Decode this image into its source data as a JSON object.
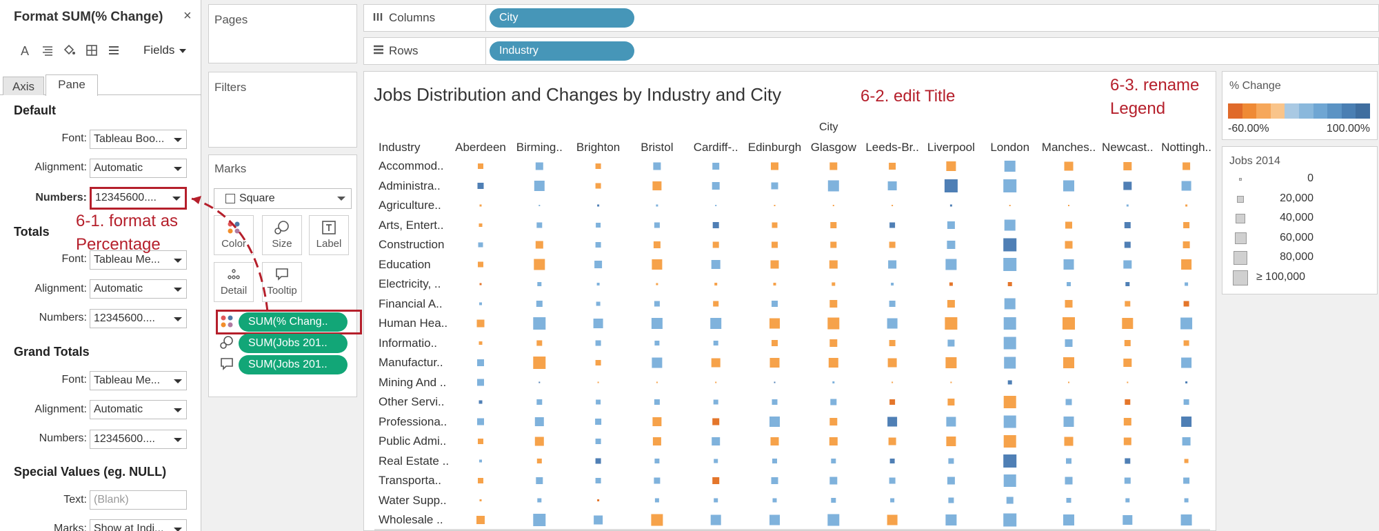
{
  "format_panel": {
    "title": "Format SUM(% Change)",
    "close": "×",
    "toolbar": {
      "font_icon": "A",
      "fields_label": "Fields"
    },
    "tabs": [
      "Axis",
      "Pane"
    ],
    "sections": {
      "default": {
        "heading": "Default",
        "font_label": "Font:",
        "font_value": "Tableau Boo...",
        "alignment_label": "Alignment:",
        "alignment_value": "Automatic",
        "numbers_label": "Numbers:",
        "numbers_value": "12345600...."
      },
      "totals": {
        "heading": "Totals",
        "font_label": "Font:",
        "font_value": "Tableau Me...",
        "alignment_label": "Alignment:",
        "alignment_value": "Automatic",
        "numbers_label": "Numbers:",
        "numbers_value": "12345600...."
      },
      "grand_totals": {
        "heading": "Grand Totals",
        "font_label": "Font:",
        "font_value": "Tableau Me...",
        "alignment_label": "Alignment:",
        "alignment_value": "Automatic",
        "numbers_label": "Numbers:",
        "numbers_value": "12345600...."
      },
      "special": {
        "heading": "Special Values (eg. NULL)",
        "text_label": "Text:",
        "text_placeholder": "(Blank)",
        "marks_label": "Marks:",
        "marks_value": "Show at Indi..."
      }
    }
  },
  "annotations": {
    "a1_line1": "6-1. format as",
    "a1_line2": "Percentage",
    "a2": "6-2. edit Title",
    "a3_line1": "6-3. rename",
    "a3_line2": "Legend"
  },
  "shelves": {
    "pages": "Pages",
    "filters": "Filters",
    "marks": "Marks",
    "mark_type": "Square",
    "buttons": {
      "color": "Color",
      "size": "Size",
      "label": "Label",
      "detail": "Detail",
      "tooltip": "Tooltip"
    },
    "pills": [
      "SUM(% Chang..",
      "SUM(Jobs 201..",
      "SUM(Jobs 201.."
    ],
    "columns_label": "Columns",
    "columns_pill": "City",
    "rows_label": "Rows",
    "rows_pill": "Industry"
  },
  "viz": {
    "title": "Jobs Distribution and Changes by Industry and City",
    "city_header": "City",
    "industry_header": "Industry",
    "cities": [
      "Aberdeen",
      "Birming..",
      "Brighton",
      "Bristol",
      "Cardiff-..",
      "Edinburgh",
      "Glasgow",
      "Leeds-Br..",
      "Liverpool",
      "London",
      "Manches..",
      "Newcast..",
      "Nottingh.."
    ],
    "industries": [
      "Accommod..",
      "Administra..",
      "Agriculture..",
      "Arts, Entert..",
      "Construction",
      "Education",
      "Electricity, ..",
      "Financial A..",
      "Human Hea..",
      "Informatio..",
      "Manufactur..",
      "Mining And ..",
      "Other Servi..",
      "Professiona..",
      "Public Admi..",
      "Real Estate ..",
      "Transporta..",
      "Water Supp..",
      "Wholesale .."
    ]
  },
  "legends": {
    "change_title": "% Change",
    "change_min": "-60.00%",
    "change_max": "100.00%",
    "change_colors": [
      "#e06a2a",
      "#ef8a35",
      "#f6a75a",
      "#f9c48a",
      "#a9c9e3",
      "#8ab8dc",
      "#6fa6d3",
      "#5b93c4",
      "#4a7fb3",
      "#3f6e9f"
    ],
    "jobs_title": "Jobs 2014",
    "jobs_levels": [
      "0",
      "20,000",
      "40,000",
      "60,000",
      "80,000",
      "≥ 100,000"
    ]
  },
  "colors": {
    "orange": "#f6a24a",
    "blue": "#7fb2dc",
    "dark_blue": "#4f7fb5",
    "dark_orange": "#e4762b",
    "annotation_red": "#b51f2b",
    "pill_green": "#12a677",
    "pill_blue": "#4696b8"
  },
  "chart_data": {
    "type": "heatmap",
    "title": "Jobs Distribution and Changes by Industry and City",
    "xlabel": "City",
    "ylabel": "Industry",
    "encoding": "square size = Jobs 2014, color = % Change",
    "color_scale": {
      "min": -60,
      "max": 100,
      "unit": "%"
    },
    "size_scale": {
      "levels": [
        0,
        20000,
        40000,
        60000,
        80000,
        100000
      ]
    },
    "cells": [
      [
        [
          8,
          "o"
        ],
        [
          11,
          "b"
        ],
        [
          8,
          "o"
        ],
        [
          11,
          "b"
        ],
        [
          10,
          "b"
        ],
        [
          11,
          "o"
        ],
        [
          11,
          "o"
        ],
        [
          10,
          "o"
        ],
        [
          14,
          "o"
        ],
        [
          16,
          "b"
        ],
        [
          13,
          "o"
        ],
        [
          12,
          "o"
        ],
        [
          11,
          "o"
        ]
      ],
      [
        [
          9,
          "db"
        ],
        [
          15,
          "b"
        ],
        [
          8,
          "o"
        ],
        [
          13,
          "o"
        ],
        [
          11,
          "b"
        ],
        [
          10,
          "b"
        ],
        [
          16,
          "b"
        ],
        [
          13,
          "b"
        ],
        [
          19,
          "db"
        ],
        [
          19,
          "b"
        ],
        [
          16,
          "b"
        ],
        [
          12,
          "db"
        ],
        [
          14,
          "b"
        ]
      ],
      [
        [
          3,
          "o"
        ],
        [
          2,
          "b"
        ],
        [
          3,
          "db"
        ],
        [
          3,
          "b"
        ],
        [
          2,
          "b"
        ],
        [
          2,
          "o"
        ],
        [
          2,
          "o"
        ],
        [
          2,
          "o"
        ],
        [
          3,
          "db"
        ],
        [
          2,
          "o"
        ],
        [
          2,
          "o"
        ],
        [
          3,
          "b"
        ],
        [
          3,
          "o"
        ]
      ],
      [
        [
          5,
          "o"
        ],
        [
          8,
          "b"
        ],
        [
          7,
          "b"
        ],
        [
          8,
          "b"
        ],
        [
          9,
          "db"
        ],
        [
          8,
          "o"
        ],
        [
          9,
          "o"
        ],
        [
          8,
          "db"
        ],
        [
          11,
          "b"
        ],
        [
          16,
          "b"
        ],
        [
          10,
          "o"
        ],
        [
          9,
          "db"
        ],
        [
          9,
          "o"
        ]
      ],
      [
        [
          7,
          "b"
        ],
        [
          11,
          "o"
        ],
        [
          8,
          "b"
        ],
        [
          10,
          "o"
        ],
        [
          9,
          "o"
        ],
        [
          9,
          "o"
        ],
        [
          9,
          "o"
        ],
        [
          9,
          "o"
        ],
        [
          12,
          "b"
        ],
        [
          19,
          "db"
        ],
        [
          11,
          "o"
        ],
        [
          9,
          "db"
        ],
        [
          10,
          "o"
        ]
      ],
      [
        [
          8,
          "o"
        ],
        [
          16,
          "o"
        ],
        [
          11,
          "b"
        ],
        [
          15,
          "o"
        ],
        [
          13,
          "b"
        ],
        [
          12,
          "o"
        ],
        [
          12,
          "o"
        ],
        [
          12,
          "b"
        ],
        [
          16,
          "b"
        ],
        [
          19,
          "b"
        ],
        [
          15,
          "b"
        ],
        [
          12,
          "b"
        ],
        [
          15,
          "o"
        ]
      ],
      [
        [
          3,
          "do"
        ],
        [
          6,
          "b"
        ],
        [
          4,
          "b"
        ],
        [
          3,
          "o"
        ],
        [
          4,
          "o"
        ],
        [
          4,
          "o"
        ],
        [
          5,
          "o"
        ],
        [
          4,
          "b"
        ],
        [
          5,
          "do"
        ],
        [
          6,
          "do"
        ],
        [
          6,
          "b"
        ],
        [
          6,
          "db"
        ],
        [
          5,
          "b"
        ]
      ],
      [
        [
          4,
          "b"
        ],
        [
          9,
          "b"
        ],
        [
          6,
          "b"
        ],
        [
          8,
          "b"
        ],
        [
          8,
          "o"
        ],
        [
          9,
          "b"
        ],
        [
          11,
          "o"
        ],
        [
          9,
          "b"
        ],
        [
          11,
          "o"
        ],
        [
          16,
          "b"
        ],
        [
          11,
          "o"
        ],
        [
          8,
          "o"
        ],
        [
          8,
          "do"
        ]
      ],
      [
        [
          11,
          "o"
        ],
        [
          18,
          "b"
        ],
        [
          14,
          "b"
        ],
        [
          16,
          "b"
        ],
        [
          16,
          "b"
        ],
        [
          15,
          "o"
        ],
        [
          17,
          "o"
        ],
        [
          15,
          "b"
        ],
        [
          18,
          "o"
        ],
        [
          18,
          "b"
        ],
        [
          18,
          "o"
        ],
        [
          16,
          "o"
        ],
        [
          17,
          "b"
        ]
      ],
      [
        [
          5,
          "o"
        ],
        [
          8,
          "o"
        ],
        [
          8,
          "b"
        ],
        [
          7,
          "b"
        ],
        [
          7,
          "b"
        ],
        [
          9,
          "o"
        ],
        [
          11,
          "o"
        ],
        [
          9,
          "o"
        ],
        [
          10,
          "b"
        ],
        [
          18,
          "b"
        ],
        [
          11,
          "b"
        ],
        [
          9,
          "o"
        ],
        [
          8,
          "o"
        ]
      ],
      [
        [
          10,
          "b"
        ],
        [
          18,
          "o"
        ],
        [
          8,
          "o"
        ],
        [
          15,
          "b"
        ],
        [
          13,
          "o"
        ],
        [
          14,
          "o"
        ],
        [
          14,
          "o"
        ],
        [
          13,
          "o"
        ],
        [
          16,
          "o"
        ],
        [
          17,
          "b"
        ],
        [
          16,
          "o"
        ],
        [
          12,
          "o"
        ],
        [
          15,
          "b"
        ]
      ],
      [
        [
          10,
          "b"
        ],
        [
          2,
          "db"
        ],
        [
          2,
          "o"
        ],
        [
          2,
          "o"
        ],
        [
          2,
          "o"
        ],
        [
          2,
          "db"
        ],
        [
          3,
          "b"
        ],
        [
          2,
          "o"
        ],
        [
          2,
          "o"
        ],
        [
          6,
          "db"
        ],
        [
          2,
          "o"
        ],
        [
          2,
          "o"
        ],
        [
          3,
          "db"
        ]
      ],
      [
        [
          5,
          "db"
        ],
        [
          8,
          "b"
        ],
        [
          7,
          "b"
        ],
        [
          8,
          "b"
        ],
        [
          7,
          "b"
        ],
        [
          8,
          "b"
        ],
        [
          9,
          "b"
        ],
        [
          8,
          "do"
        ],
        [
          10,
          "o"
        ],
        [
          18,
          "o"
        ],
        [
          9,
          "b"
        ],
        [
          8,
          "do"
        ],
        [
          8,
          "b"
        ]
      ],
      [
        [
          10,
          "b"
        ],
        [
          13,
          "b"
        ],
        [
          9,
          "b"
        ],
        [
          13,
          "o"
        ],
        [
          10,
          "do"
        ],
        [
          15,
          "b"
        ],
        [
          11,
          "o"
        ],
        [
          14,
          "db"
        ],
        [
          14,
          "b"
        ],
        [
          18,
          "b"
        ],
        [
          15,
          "b"
        ],
        [
          11,
          "o"
        ],
        [
          15,
          "db"
        ]
      ],
      [
        [
          8,
          "o"
        ],
        [
          13,
          "o"
        ],
        [
          8,
          "b"
        ],
        [
          12,
          "o"
        ],
        [
          12,
          "b"
        ],
        [
          12,
          "o"
        ],
        [
          12,
          "o"
        ],
        [
          11,
          "o"
        ],
        [
          14,
          "o"
        ],
        [
          18,
          "o"
        ],
        [
          13,
          "o"
        ],
        [
          11,
          "o"
        ],
        [
          12,
          "b"
        ]
      ],
      [
        [
          4,
          "b"
        ],
        [
          7,
          "o"
        ],
        [
          8,
          "db"
        ],
        [
          7,
          "b"
        ],
        [
          6,
          "b"
        ],
        [
          7,
          "b"
        ],
        [
          7,
          "b"
        ],
        [
          7,
          "db"
        ],
        [
          8,
          "b"
        ],
        [
          19,
          "db"
        ],
        [
          8,
          "b"
        ],
        [
          8,
          "db"
        ],
        [
          6,
          "o"
        ]
      ],
      [
        [
          8,
          "o"
        ],
        [
          10,
          "b"
        ],
        [
          8,
          "b"
        ],
        [
          9,
          "b"
        ],
        [
          10,
          "do"
        ],
        [
          10,
          "b"
        ],
        [
          11,
          "b"
        ],
        [
          9,
          "b"
        ],
        [
          11,
          "b"
        ],
        [
          18,
          "b"
        ],
        [
          11,
          "b"
        ],
        [
          9,
          "b"
        ],
        [
          9,
          "b"
        ]
      ],
      [
        [
          3,
          "o"
        ],
        [
          6,
          "b"
        ],
        [
          3,
          "do"
        ],
        [
          6,
          "b"
        ],
        [
          6,
          "b"
        ],
        [
          6,
          "b"
        ],
        [
          7,
          "b"
        ],
        [
          6,
          "b"
        ],
        [
          8,
          "b"
        ],
        [
          10,
          "b"
        ],
        [
          7,
          "b"
        ],
        [
          6,
          "b"
        ],
        [
          6,
          "b"
        ]
      ],
      [
        [
          12,
          "o"
        ],
        [
          18,
          "b"
        ],
        [
          13,
          "b"
        ],
        [
          17,
          "o"
        ],
        [
          15,
          "b"
        ],
        [
          15,
          "b"
        ],
        [
          17,
          "b"
        ],
        [
          15,
          "o"
        ],
        [
          16,
          "b"
        ],
        [
          19,
          "b"
        ],
        [
          16,
          "b"
        ],
        [
          14,
          "b"
        ],
        [
          16,
          "b"
        ]
      ]
    ]
  }
}
